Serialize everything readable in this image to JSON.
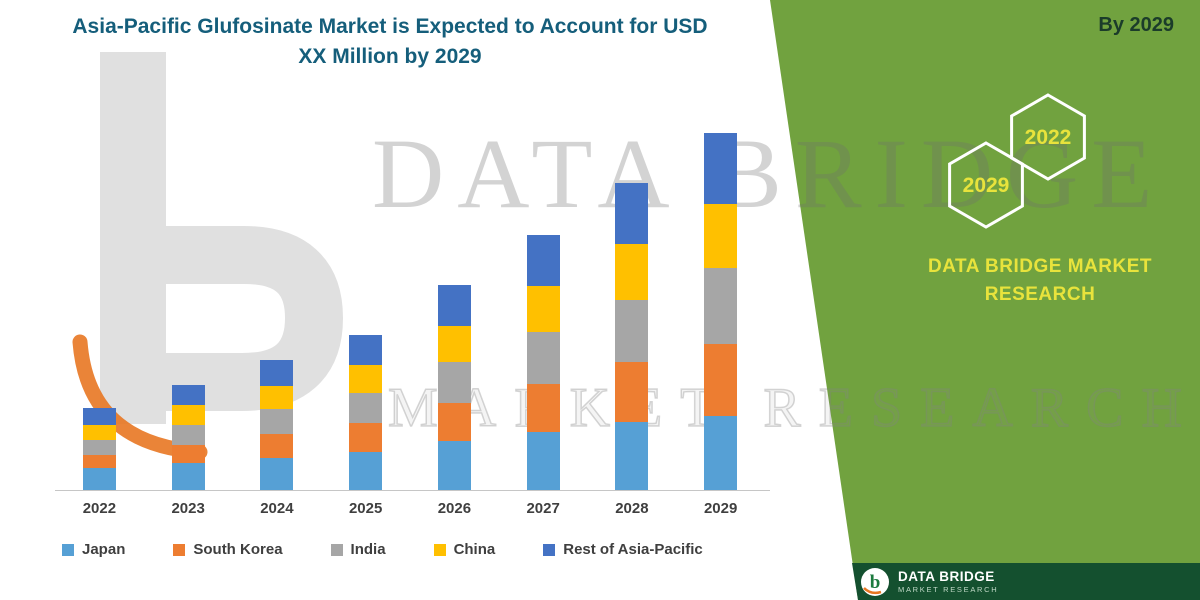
{
  "header": {
    "title_line1": "Asia-Pacific Glufosinate Market is Expected to Account for USD",
    "title_line2": "XX Million by 2029"
  },
  "watermark": {
    "line1": "DATA BRIDGE",
    "line2": "MARKET RESEARCH"
  },
  "side_panel": {
    "corner_label": "By 2029",
    "hexagons": [
      {
        "year": "2029"
      },
      {
        "year": "2022"
      }
    ],
    "brand_line1": "DATA BRIDGE MARKET",
    "brand_line2": "RESEARCH"
  },
  "footer": {
    "brand_name": "DATA BRIDGE",
    "brand_sub": "MARKET RESEARCH"
  },
  "colors": {
    "panel_green": "#71A23F",
    "footer_green": "#14502F",
    "accent_yellow": "#E8E33C",
    "title_teal": "#155E7B",
    "axis_text": "#3F3F3F",
    "brand_orange": "#E87722"
  },
  "chart_data": {
    "type": "bar",
    "stacked": true,
    "title": "Asia-Pacific Glufosinate Market is Expected to Account for USD XX Million by 2029",
    "xlabel": "",
    "ylabel": "",
    "grid": false,
    "legend_position": "bottom",
    "value_note": "Axis values not shown in figure (USD XX Million); values below are relative magnitudes estimated from bar heights",
    "categories": [
      "2022",
      "2023",
      "2024",
      "2025",
      "2026",
      "2027",
      "2028",
      "2029"
    ],
    "series": [
      {
        "name": "Japan",
        "color": "#56A0D5",
        "values": [
          22,
          27,
          32,
          38,
          49,
          58,
          68,
          74
        ]
      },
      {
        "name": "South Korea",
        "color": "#ED7D31",
        "values": [
          13,
          18,
          24,
          29,
          38,
          48,
          60,
          72
        ]
      },
      {
        "name": "India",
        "color": "#A6A6A6",
        "values": [
          15,
          20,
          25,
          30,
          41,
          52,
          62,
          76
        ]
      },
      {
        "name": "China",
        "color": "#FFC000",
        "values": [
          15,
          20,
          23,
          28,
          36,
          46,
          56,
          64
        ]
      },
      {
        "name": "Rest of Asia-Pacific",
        "color": "#4472C4",
        "values": [
          17,
          20,
          26,
          30,
          41,
          51,
          61,
          71
        ]
      }
    ],
    "ylim": [
      0,
      362
    ]
  }
}
